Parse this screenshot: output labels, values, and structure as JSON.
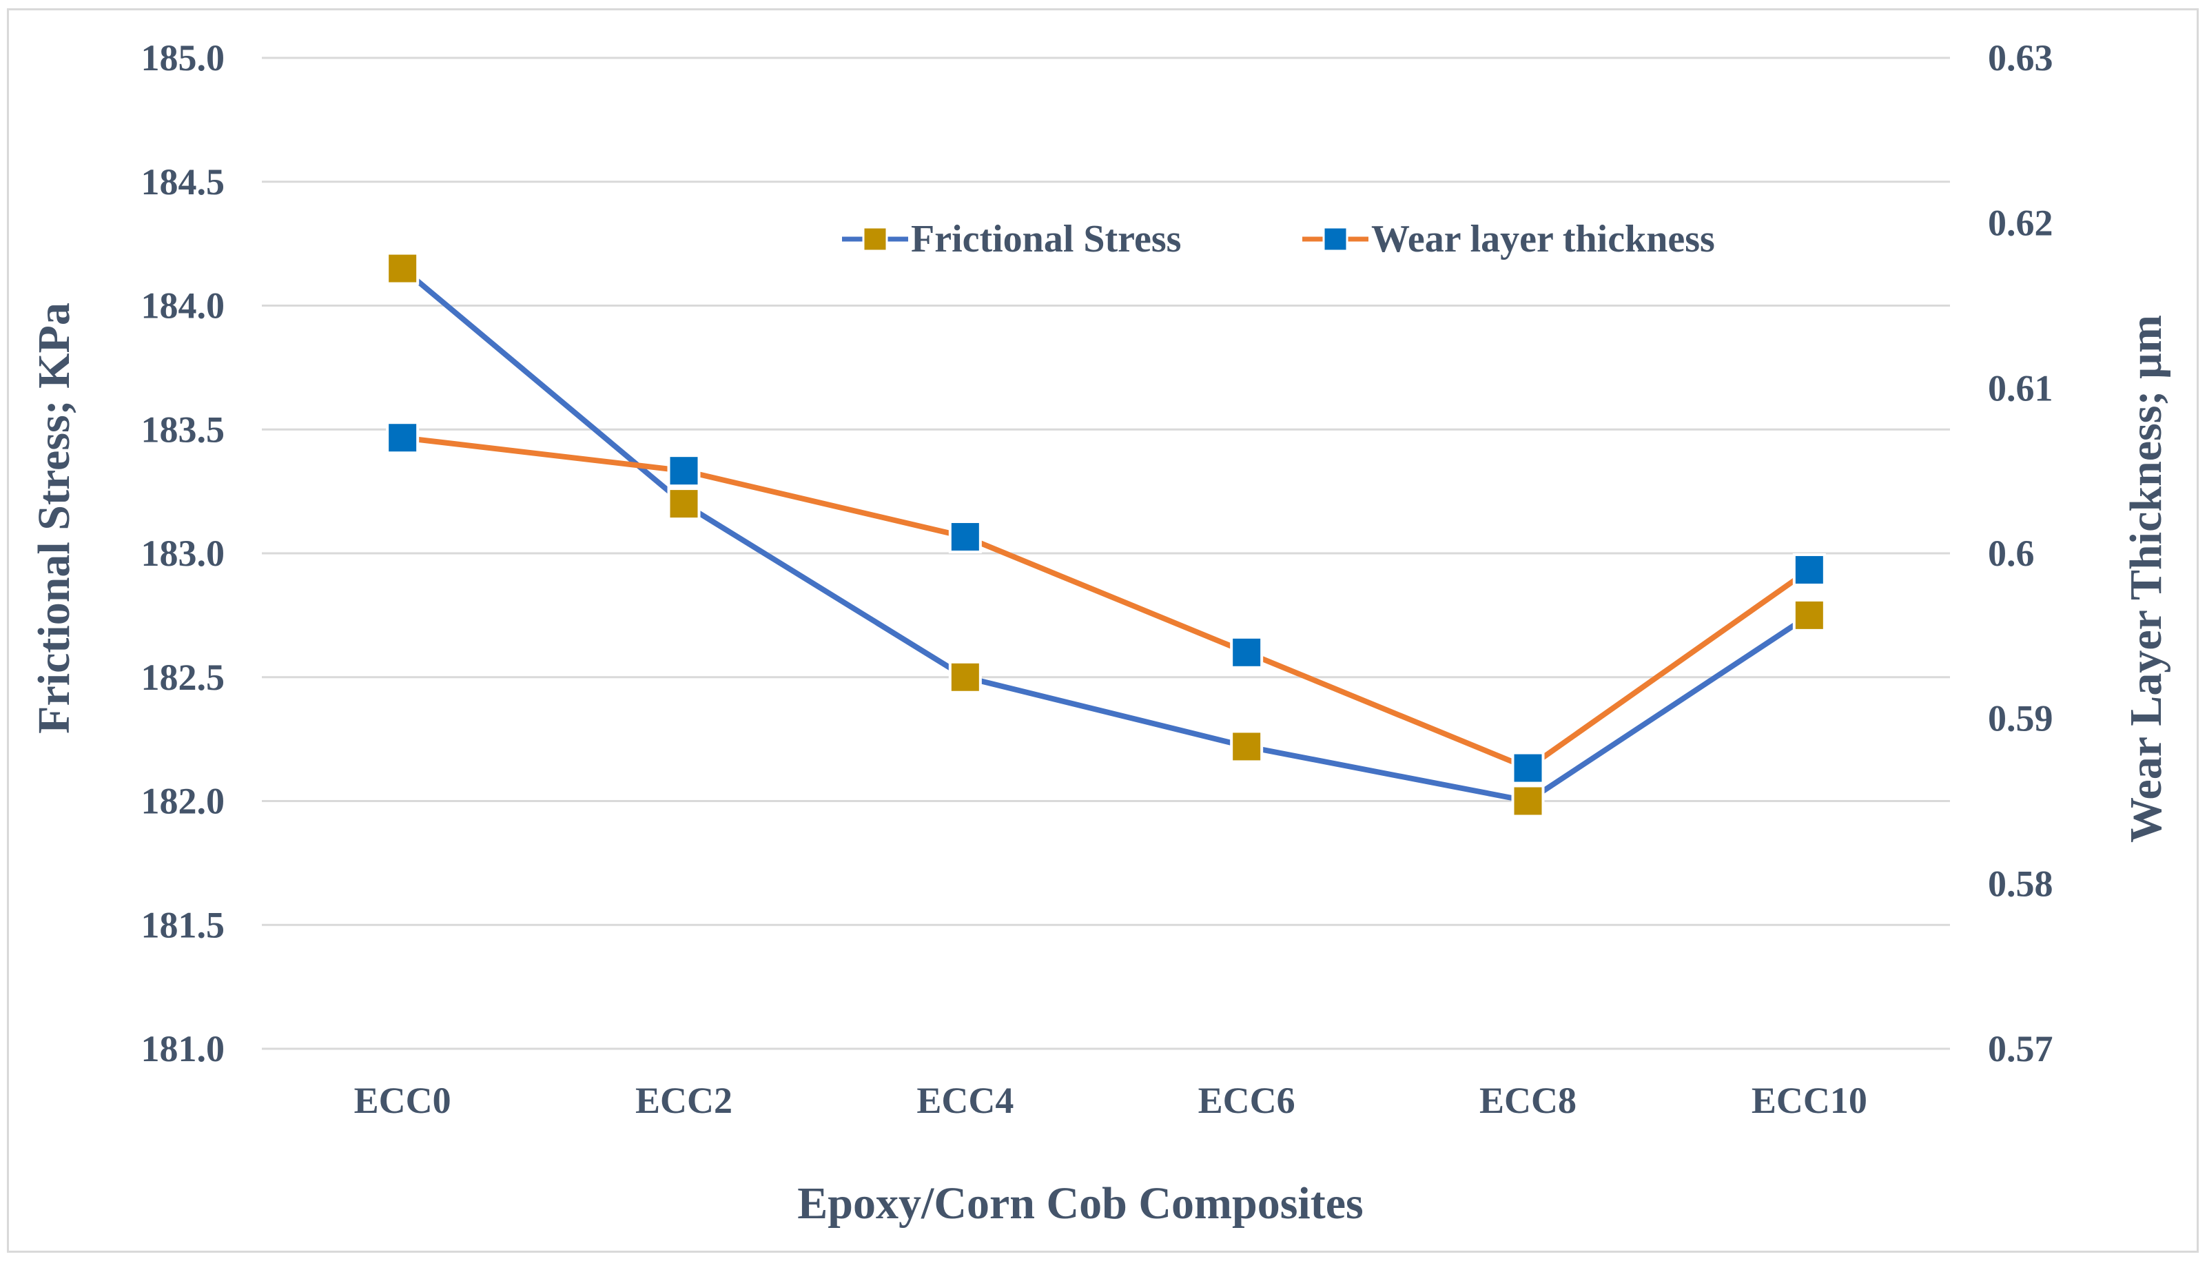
{
  "chart_data": {
    "type": "line",
    "title": "",
    "categories": [
      "ECC0",
      "ECC2",
      "ECC4",
      "ECC6",
      "ECC8",
      "ECC10"
    ],
    "xlabel": "Epoxy/Corn Cob Composites",
    "ylabel": "Frictional Stress; KPa",
    "y2label": "Wear Layer Thickness; µm",
    "ylim": [
      181.0,
      185.0
    ],
    "y2lim": [
      0.57,
      0.63
    ],
    "yticks": [
      "181.0",
      "181.5",
      "182.0",
      "182.5",
      "183.0",
      "183.5",
      "184.0",
      "184.5",
      "185.0"
    ],
    "y2ticks": [
      "0.57",
      "0.58",
      "0.59",
      "0.6",
      "0.61",
      "0.62",
      "0.63"
    ],
    "grid": true,
    "legend_position": "top-right",
    "series": [
      {
        "name": "Frictional Stress",
        "axis": "left",
        "values": [
          184.15,
          183.2,
          182.5,
          182.22,
          182.0,
          182.75
        ],
        "line_color": "#4472c4",
        "marker_color": "#bf9000"
      },
      {
        "name": "Wear layer thickness",
        "axis": "right",
        "values": [
          0.607,
          0.605,
          0.601,
          0.594,
          0.587,
          0.599
        ],
        "line_color": "#ed7d31",
        "marker_color": "#0070c0"
      }
    ]
  }
}
